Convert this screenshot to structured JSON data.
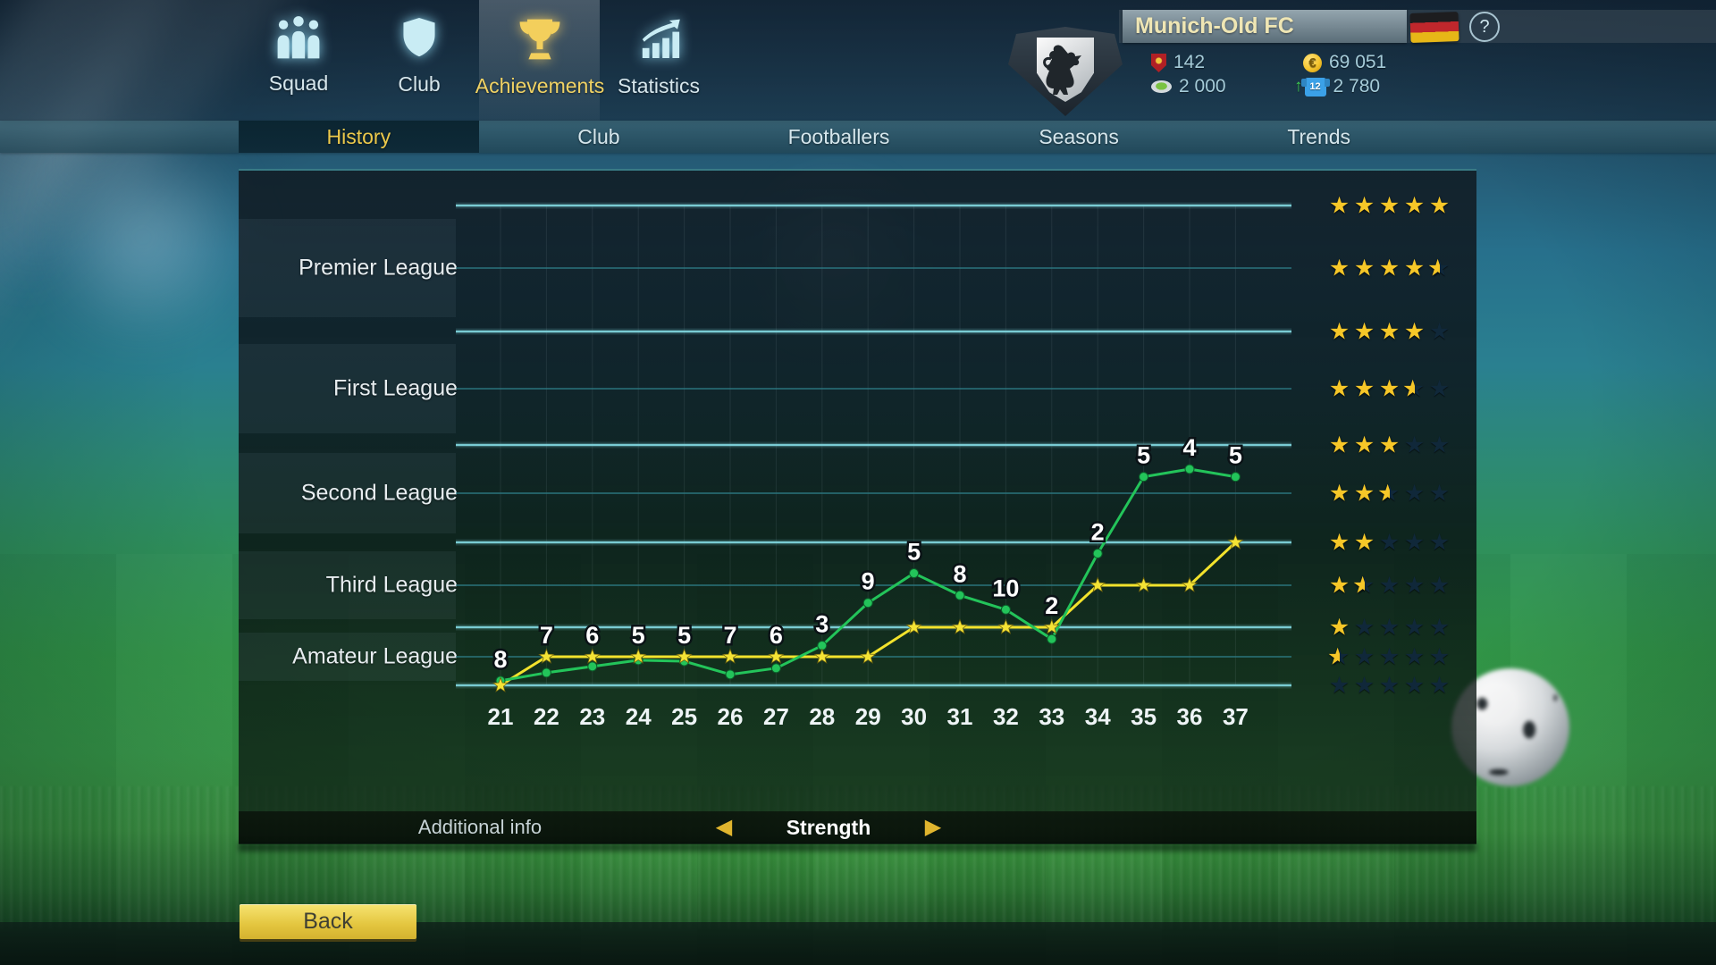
{
  "top_nav": {
    "items": [
      {
        "label": "Squad",
        "icon": "squad-icon",
        "active": false
      },
      {
        "label": "Club",
        "icon": "shield-icon",
        "active": false
      },
      {
        "label": "Achievements",
        "icon": "trophy-icon",
        "active": true
      },
      {
        "label": "Statistics",
        "icon": "stats-icon",
        "active": false
      }
    ]
  },
  "club_banner": {
    "name": "Munich-Old FC",
    "stats": [
      {
        "icon": "pennant-icon",
        "value": "142"
      },
      {
        "icon": "stadium-icon",
        "value": "2 000"
      },
      {
        "icon": "euro-coin-icon",
        "value": "69 051"
      },
      {
        "icon": "jersey-icon",
        "value": "2 780",
        "trend": "up"
      }
    ],
    "jersey_number": "12",
    "currency_symbol": "€",
    "country": "germany-flag"
  },
  "sub_nav": {
    "tabs": [
      "History",
      "Club",
      "Footballers",
      "Seasons",
      "Trends"
    ],
    "active": "History"
  },
  "chart_data": {
    "type": "line",
    "x": [
      21,
      22,
      23,
      24,
      25,
      26,
      27,
      28,
      29,
      30,
      31,
      32,
      33,
      34,
      35,
      36,
      37
    ],
    "series": [
      {
        "name": "yellow-line",
        "color": "#f2e22c",
        "marker": "star",
        "values": [
          0,
          0.5,
          0.5,
          0.5,
          0.5,
          0.5,
          0.5,
          0.5,
          0.5,
          1,
          1,
          1,
          1,
          1.5,
          1.5,
          1.5,
          2
        ]
      },
      {
        "name": "green-line",
        "color": "#23c45a",
        "marker": "dot",
        "values": [
          0.08,
          0.22,
          0.33,
          0.44,
          0.42,
          0.19,
          0.3,
          0.69,
          1.29,
          1.64,
          1.38,
          1.21,
          0.8,
          1.87,
          2.67,
          2.75,
          2.67
        ]
      }
    ],
    "point_labels": [
      "8",
      "7",
      "6",
      "5",
      "5",
      "7",
      "6",
      "3",
      "9",
      "5",
      "8",
      "10",
      "2",
      "2",
      "5",
      "4",
      "5"
    ],
    "y_axis": {
      "min": 0,
      "max": 5,
      "major_gridlines": [
        0,
        1,
        2,
        3,
        4,
        5
      ],
      "minor_gridlines": [
        0.5,
        1.5,
        2.5,
        3.5,
        4.5
      ]
    },
    "leagues": [
      {
        "name": "Premier League",
        "center": 4.5
      },
      {
        "name": "First League",
        "center": 3.5
      },
      {
        "name": "Second League",
        "center": 2.5
      },
      {
        "name": "Third League",
        "center": 1.5
      },
      {
        "name": "Amateur League",
        "center": 0.5
      }
    ],
    "star_rows": [
      5,
      4.5,
      4,
      3.5,
      3,
      2.5,
      2,
      1.5,
      1,
      0.5,
      0
    ]
  },
  "footer": {
    "additional_info": "Additional info",
    "metric": "Strength"
  },
  "back_button": "Back",
  "icons": {
    "arrow_left": "◀",
    "arrow_right": "▶",
    "trend_up": "↑",
    "help": "?",
    "star": "★"
  }
}
